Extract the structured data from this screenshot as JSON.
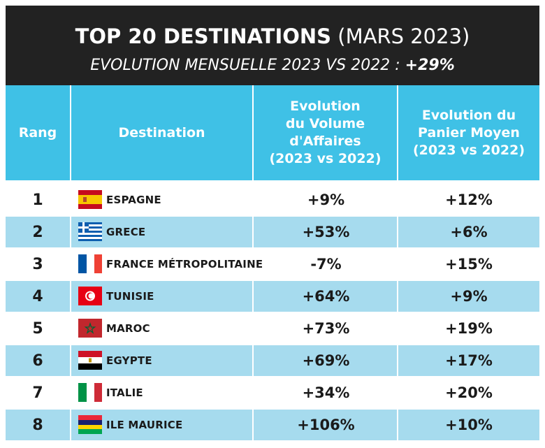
{
  "header": {
    "title_bold": "TOP 20 DESTINATIONS",
    "title_light": "(MARS 2023)",
    "subtitle_text": "EVOLUTION MENSUELLE 2023 VS 2022 :",
    "subtitle_value": "+29%"
  },
  "columns": {
    "rank": [
      "Rang"
    ],
    "destination": [
      "Destination"
    ],
    "volume": [
      "Evolution",
      "du Volume",
      "d'Affaires",
      "(2023 vs 2022)"
    ],
    "panier": [
      "Evolution du",
      "Panier Moyen",
      "(2023 vs 2022)"
    ]
  },
  "rows": [
    {
      "rank": "1",
      "destination": "ESPAGNE",
      "flag": "spain-flag-icon",
      "volume": "+9%",
      "panier": "+12%"
    },
    {
      "rank": "2",
      "destination": "GRECE",
      "flag": "greece-flag-icon",
      "volume": "+53%",
      "panier": "+6%"
    },
    {
      "rank": "3",
      "destination": "FRANCE MÉTROPOLITAINE",
      "flag": "france-flag-icon",
      "volume": "-7%",
      "panier": "+15%"
    },
    {
      "rank": "4",
      "destination": "TUNISIE",
      "flag": "tunisia-flag-icon",
      "volume": "+64%",
      "panier": "+9%"
    },
    {
      "rank": "5",
      "destination": "MAROC",
      "flag": "morocco-flag-icon",
      "volume": "+73%",
      "panier": "+19%"
    },
    {
      "rank": "6",
      "destination": "EGYPTE",
      "flag": "egypt-flag-icon",
      "volume": "+69%",
      "panier": "+17%"
    },
    {
      "rank": "7",
      "destination": "ITALIE",
      "flag": "italy-flag-icon",
      "volume": "+34%",
      "panier": "+20%"
    },
    {
      "rank": "8",
      "destination": "ILE MAURICE",
      "flag": "mauritius-flag-icon",
      "volume": "+106%",
      "panier": "+10%"
    }
  ],
  "colors": {
    "header_bg": "#222222",
    "table_header_bg": "#3fc1e6",
    "alt_row_bg": "#a6dbee"
  }
}
